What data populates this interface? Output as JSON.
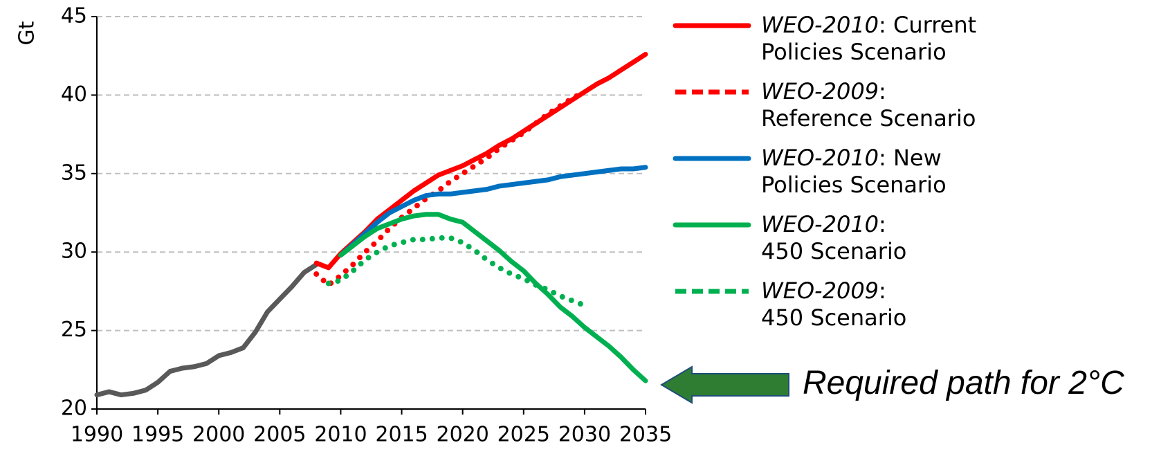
{
  "chart_data": {
    "type": "line",
    "ylabel": "Gt",
    "x": [
      1990,
      1991,
      1992,
      1993,
      1994,
      1995,
      1996,
      1997,
      1998,
      1999,
      2000,
      2001,
      2002,
      2003,
      2004,
      2005,
      2006,
      2007,
      2008,
      2009,
      2010,
      2011,
      2012,
      2013,
      2014,
      2015,
      2016,
      2017,
      2018,
      2019,
      2020,
      2021,
      2022,
      2023,
      2024,
      2025,
      2026,
      2027,
      2028,
      2029,
      2030,
      2031,
      2032,
      2033,
      2034,
      2035
    ],
    "xlim": [
      1990,
      2035
    ],
    "xticks": [
      1990,
      1995,
      2000,
      2005,
      2010,
      2015,
      2020,
      2025,
      2030,
      2035
    ],
    "ylim": [
      20,
      45
    ],
    "yticks": [
      20,
      25,
      30,
      35,
      40,
      45
    ],
    "grid": true,
    "series": [
      {
        "color": "#595959",
        "style": "solid",
        "values": [
          20.9,
          21.1,
          20.9,
          21.0,
          21.2,
          21.7,
          22.4,
          22.6,
          22.7,
          22.9,
          23.4,
          23.6,
          23.9,
          24.9,
          26.2,
          27.0,
          27.8,
          28.7,
          29.2,
          null,
          null,
          null,
          null,
          null,
          null,
          null,
          null,
          null,
          null,
          null,
          null,
          null,
          null,
          null,
          null,
          null,
          null,
          null,
          null,
          null,
          null,
          null,
          null,
          null,
          null,
          null
        ]
      },
      {
        "name": "WEO-2010: Current\nPolicies Scenario",
        "color": "#ff0000",
        "style": "solid",
        "values": [
          null,
          null,
          null,
          null,
          null,
          null,
          null,
          null,
          null,
          null,
          null,
          null,
          null,
          null,
          null,
          null,
          null,
          null,
          29.3,
          29.0,
          29.9,
          30.6,
          31.3,
          32.1,
          32.7,
          33.3,
          33.9,
          34.4,
          34.9,
          35.2,
          35.5,
          35.9,
          36.3,
          36.8,
          37.2,
          37.7,
          38.2,
          38.7,
          39.2,
          39.7,
          40.2,
          40.7,
          41.1,
          41.6,
          42.1,
          42.6
        ]
      },
      {
        "name": "WEO-2009:\nReference Scenario",
        "color": "#ff0000",
        "style": "dotted",
        "values": [
          null,
          null,
          null,
          null,
          null,
          null,
          null,
          null,
          null,
          null,
          null,
          null,
          null,
          null,
          null,
          null,
          null,
          null,
          28.6,
          27.9,
          28.5,
          29.2,
          30.0,
          30.7,
          31.5,
          32.2,
          32.8,
          33.4,
          33.9,
          34.5,
          35.0,
          35.5,
          36.0,
          36.6,
          37.1,
          37.6,
          38.2,
          38.8,
          39.3,
          39.8,
          40.2,
          null,
          null,
          null,
          null,
          null
        ]
      },
      {
        "name": "WEO-2010: New\nPolicies Scenario",
        "color": "#0070c0",
        "style": "solid",
        "values": [
          null,
          null,
          null,
          null,
          null,
          null,
          null,
          null,
          null,
          null,
          null,
          null,
          null,
          null,
          null,
          null,
          null,
          null,
          null,
          null,
          29.8,
          30.5,
          31.2,
          31.9,
          32.5,
          32.9,
          33.3,
          33.6,
          33.7,
          33.7,
          33.8,
          33.9,
          34.0,
          34.2,
          34.3,
          34.4,
          34.5,
          34.6,
          34.8,
          34.9,
          35.0,
          35.1,
          35.2,
          35.3,
          35.3,
          35.4
        ]
      },
      {
        "name": "WEO-2010:\n450 Scenario",
        "color": "#00b050",
        "style": "solid",
        "values": [
          null,
          null,
          null,
          null,
          null,
          null,
          null,
          null,
          null,
          null,
          null,
          null,
          null,
          null,
          null,
          null,
          null,
          null,
          null,
          null,
          29.8,
          30.4,
          31.0,
          31.5,
          31.8,
          32.1,
          32.3,
          32.4,
          32.4,
          32.1,
          31.9,
          31.3,
          30.7,
          30.1,
          29.4,
          28.8,
          28.0,
          27.3,
          26.5,
          25.9,
          25.2,
          24.6,
          24.0,
          23.3,
          22.5,
          21.8
        ]
      },
      {
        "name": "WEO-2009:\n450 Scenario",
        "color": "#00b050",
        "style": "dotted",
        "values": [
          null,
          null,
          null,
          null,
          null,
          null,
          null,
          null,
          null,
          null,
          null,
          null,
          null,
          null,
          null,
          null,
          null,
          null,
          null,
          28.0,
          28.2,
          28.8,
          29.5,
          30.0,
          30.4,
          30.6,
          30.8,
          30.8,
          30.9,
          30.9,
          30.6,
          30.1,
          29.5,
          29.0,
          28.6,
          28.3,
          27.9,
          27.6,
          27.2,
          26.9,
          26.6,
          null,
          null,
          null,
          null,
          null
        ]
      }
    ],
    "annotation": "Required path for 2°C"
  }
}
